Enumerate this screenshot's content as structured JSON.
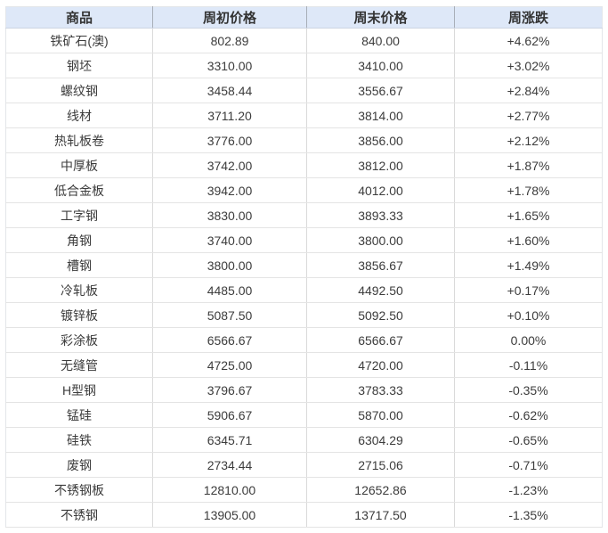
{
  "chart_data": {
    "type": "table",
    "columns": [
      "商品",
      "周初价格",
      "周末价格",
      "周涨跌"
    ],
    "rows": [
      {
        "commodity": "铁矿石(澳)",
        "week_start_price": "802.89",
        "week_end_price": "840.00",
        "weekly_change": "+4.62%"
      },
      {
        "commodity": "钢坯",
        "week_start_price": "3310.00",
        "week_end_price": "3410.00",
        "weekly_change": "+3.02%"
      },
      {
        "commodity": "螺纹钢",
        "week_start_price": "3458.44",
        "week_end_price": "3556.67",
        "weekly_change": "+2.84%"
      },
      {
        "commodity": "线材",
        "week_start_price": "3711.20",
        "week_end_price": "3814.00",
        "weekly_change": "+2.77%"
      },
      {
        "commodity": "热轧板卷",
        "week_start_price": "3776.00",
        "week_end_price": "3856.00",
        "weekly_change": "+2.12%"
      },
      {
        "commodity": "中厚板",
        "week_start_price": "3742.00",
        "week_end_price": "3812.00",
        "weekly_change": "+1.87%"
      },
      {
        "commodity": "低合金板",
        "week_start_price": "3942.00",
        "week_end_price": "4012.00",
        "weekly_change": "+1.78%"
      },
      {
        "commodity": "工字钢",
        "week_start_price": "3830.00",
        "week_end_price": "3893.33",
        "weekly_change": "+1.65%"
      },
      {
        "commodity": "角钢",
        "week_start_price": "3740.00",
        "week_end_price": "3800.00",
        "weekly_change": "+1.60%"
      },
      {
        "commodity": "槽钢",
        "week_start_price": "3800.00",
        "week_end_price": "3856.67",
        "weekly_change": "+1.49%"
      },
      {
        "commodity": "冷轧板",
        "week_start_price": "4485.00",
        "week_end_price": "4492.50",
        "weekly_change": "+0.17%"
      },
      {
        "commodity": "镀锌板",
        "week_start_price": "5087.50",
        "week_end_price": "5092.50",
        "weekly_change": "+0.10%"
      },
      {
        "commodity": "彩涂板",
        "week_start_price": "6566.67",
        "week_end_price": "6566.67",
        "weekly_change": "0.00%"
      },
      {
        "commodity": "无缝管",
        "week_start_price": "4725.00",
        "week_end_price": "4720.00",
        "weekly_change": "-0.11%"
      },
      {
        "commodity": "H型钢",
        "week_start_price": "3796.67",
        "week_end_price": "3783.33",
        "weekly_change": "-0.35%"
      },
      {
        "commodity": "锰硅",
        "week_start_price": "5906.67",
        "week_end_price": "5870.00",
        "weekly_change": "-0.62%"
      },
      {
        "commodity": "硅铁",
        "week_start_price": "6345.71",
        "week_end_price": "6304.29",
        "weekly_change": "-0.65%"
      },
      {
        "commodity": "废钢",
        "week_start_price": "2734.44",
        "week_end_price": "2715.06",
        "weekly_change": "-0.71%"
      },
      {
        "commodity": "不锈钢板",
        "week_start_price": "12810.00",
        "week_end_price": "12652.86",
        "weekly_change": "-1.23%"
      },
      {
        "commodity": "不锈钢",
        "week_start_price": "13905.00",
        "week_end_price": "13717.50",
        "weekly_change": "-1.35%"
      }
    ]
  },
  "colors": {
    "header_bg": "#dee8f8",
    "header_text": "#333333",
    "header_border": "#ccd4e2",
    "text": "#3c3c3c",
    "up": "#e13b3d",
    "down": "#2e9e38",
    "flat": "#333333",
    "row_border": "#e4e4e4",
    "col_border_header": "#a8aeb8",
    "col_border_body": "#dadada"
  }
}
